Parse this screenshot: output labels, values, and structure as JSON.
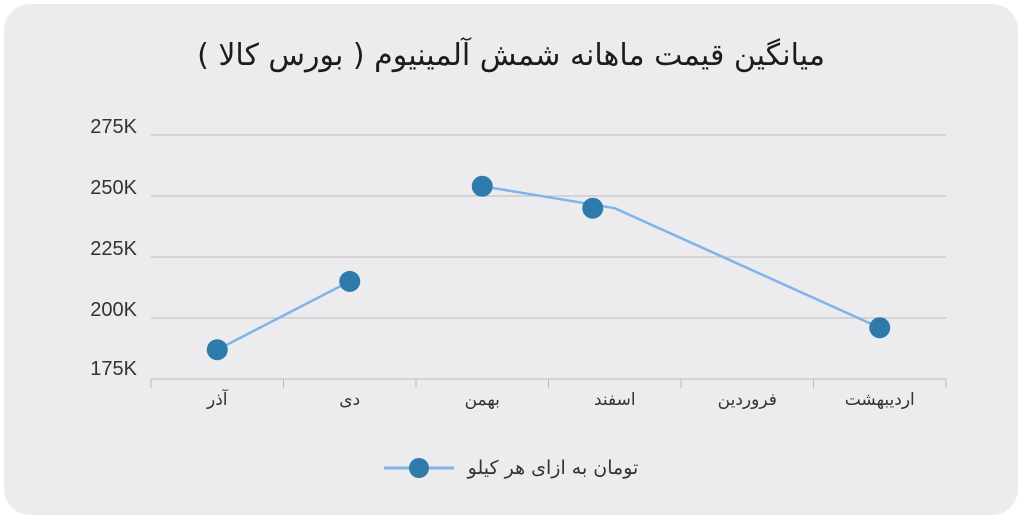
{
  "colors": {
    "card_background": "#ececee",
    "line": "#7fb3ea",
    "marker": "#2e7bab",
    "grid": "#bdbdbd",
    "text": "#333333"
  },
  "chart_data": {
    "type": "line",
    "title": "میانگین قیمت ماهانه شمش آلمینیوم ( بورس کالا )",
    "categories": [
      "آذر",
      "دی",
      "بهمن",
      "اسفند",
      "فروردین",
      "اردیبهشت"
    ],
    "series": [
      {
        "name": "تومان به ازای هر کیلو",
        "values": [
          187000,
          215000,
          254000,
          245000,
          null,
          196000
        ]
      }
    ],
    "segments": [
      [
        0,
        1
      ],
      [
        2,
        3,
        5
      ]
    ],
    "y_ticks": [
      175000,
      200000,
      225000,
      250000,
      275000
    ],
    "y_tick_labels": [
      "175K",
      "200K",
      "225K",
      "250K",
      "275K"
    ],
    "ylim": [
      175000,
      275000
    ],
    "grid": true,
    "legend_position": "bottom"
  }
}
